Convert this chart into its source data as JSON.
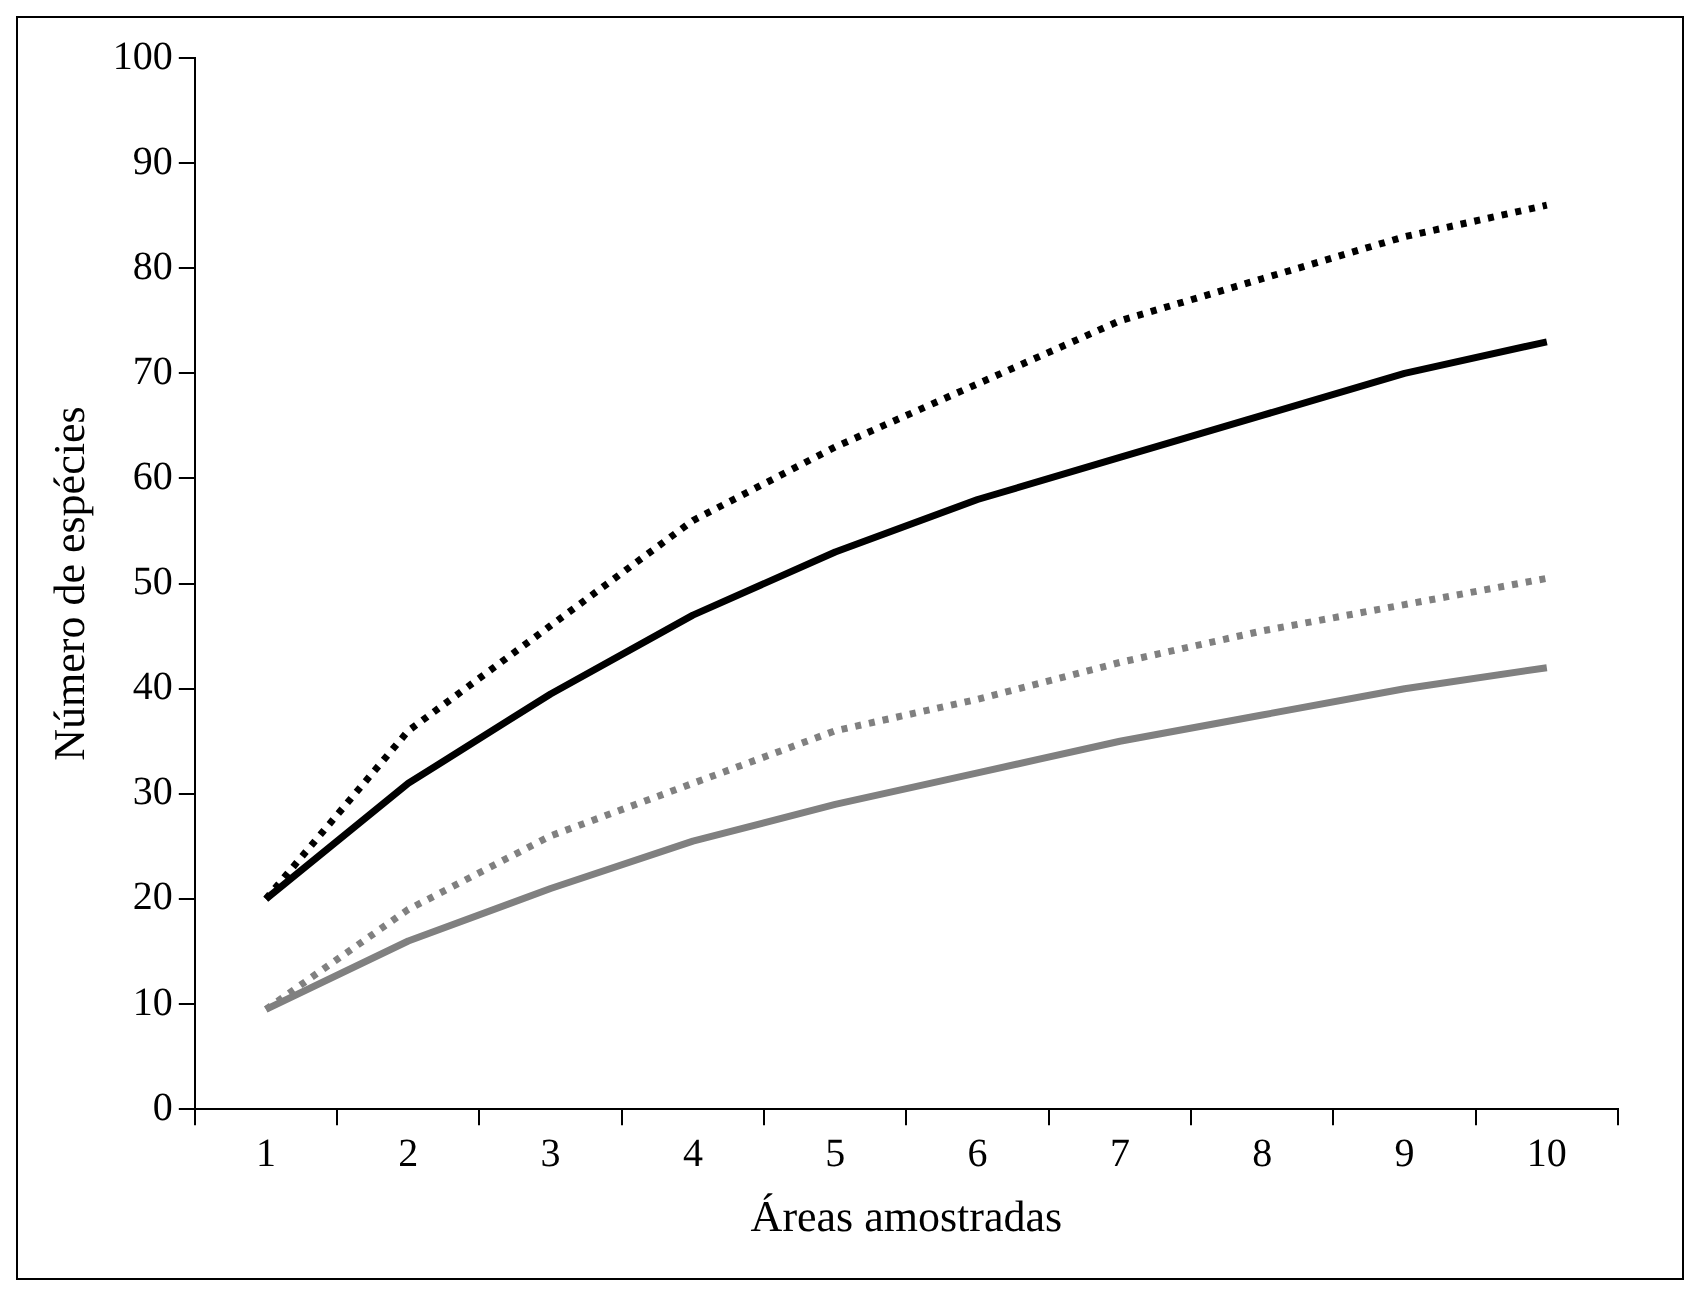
{
  "chart_data": {
    "type": "line",
    "xlabel": "Áreas amostradas",
    "ylabel": "Número de espécies",
    "categories": [
      "1",
      "2",
      "3",
      "4",
      "5",
      "6",
      "7",
      "8",
      "9",
      "10"
    ],
    "series": [
      {
        "color": "#000000",
        "line_style": "dotted",
        "values": [
          20,
          36,
          46,
          56,
          63,
          69,
          75,
          79,
          83,
          86
        ]
      },
      {
        "color": "#000000",
        "line_style": "solid",
        "values": [
          20,
          31,
          39.5,
          47,
          53,
          58,
          62,
          66,
          70,
          73
        ]
      },
      {
        "color": "#808080",
        "line_style": "dotted",
        "values": [
          9.5,
          19,
          26,
          31,
          36,
          39,
          42.5,
          45.5,
          48,
          50.5
        ]
      },
      {
        "color": "#808080",
        "line_style": "solid",
        "values": [
          9.5,
          16,
          21,
          25.5,
          29,
          32,
          35,
          37.5,
          40,
          42
        ]
      }
    ],
    "ylim": [
      0,
      100
    ],
    "yticks": [
      0,
      10,
      20,
      30,
      40,
      50,
      60,
      70,
      80,
      90,
      100
    ],
    "grid": false,
    "legend": false,
    "marker": "none"
  }
}
